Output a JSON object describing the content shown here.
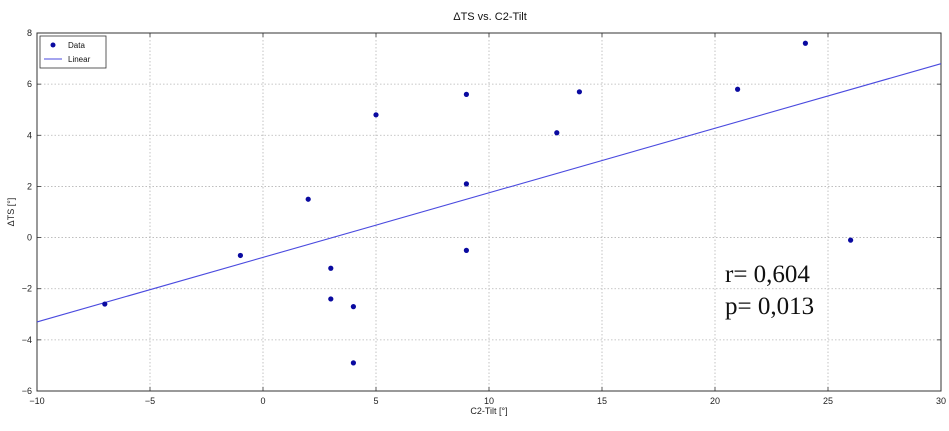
{
  "chart_data": {
    "type": "scatter",
    "title": "ΔTS vs. C2-Tilt",
    "xlabel": "C2-Tilt [°]",
    "ylabel": "ΔTS [°]",
    "xlim": [
      -10,
      30
    ],
    "ylim": [
      -6,
      8
    ],
    "xticks": [
      -10,
      -5,
      0,
      5,
      10,
      15,
      20,
      25,
      30
    ],
    "yticks": [
      -6,
      -4,
      -2,
      0,
      2,
      4,
      6,
      8
    ],
    "xtick_labels": [
      "−10",
      "−5",
      "0",
      "5",
      "10",
      "15",
      "20",
      "25",
      "30"
    ],
    "ytick_labels": [
      "−6",
      "−4",
      "−2",
      "0",
      "2",
      "4",
      "6",
      "8"
    ],
    "grid": true,
    "legend_position": "top-left",
    "series": [
      {
        "name": "Data",
        "kind": "scatter",
        "color": "#0a0aa0",
        "points": [
          [
            -7,
            -2.6
          ],
          [
            -1,
            -0.7
          ],
          [
            2,
            1.5
          ],
          [
            3,
            -1.2
          ],
          [
            3,
            -2.4
          ],
          [
            4,
            -2.7
          ],
          [
            4,
            -4.9
          ],
          [
            5,
            4.8
          ],
          [
            9,
            5.6
          ],
          [
            9,
            2.1
          ],
          [
            9,
            -0.5
          ],
          [
            13,
            4.1
          ],
          [
            14,
            5.7
          ],
          [
            21,
            5.8
          ],
          [
            24,
            7.6
          ],
          [
            26,
            -0.1
          ]
        ]
      },
      {
        "name": "Linear",
        "kind": "line",
        "color": "#4a4adf",
        "points": [
          [
            -10,
            -3.3
          ],
          [
            30,
            6.8
          ]
        ]
      }
    ],
    "annotations": [
      "r= 0,604",
      "p= 0,013"
    ]
  }
}
